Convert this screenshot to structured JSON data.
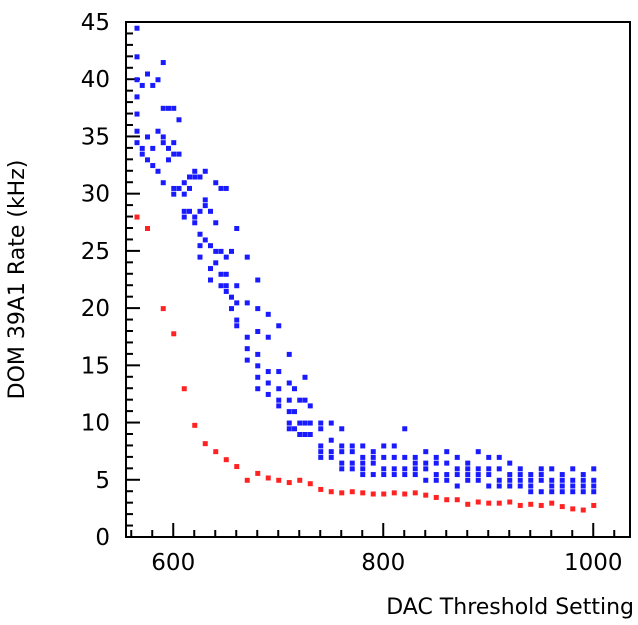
{
  "chart_data": {
    "type": "scatter",
    "title": "",
    "xlabel": "DAC Threshold Setting",
    "ylabel": "DOM 39A1 Rate (kHz)",
    "xlim": [
      555,
      1035
    ],
    "ylim": [
      0,
      45
    ],
    "xticks": [
      600,
      800,
      1000
    ],
    "yticks": [
      0,
      5,
      10,
      15,
      20,
      25,
      30,
      35,
      40,
      45
    ],
    "grid": false,
    "legend": "none",
    "series": [
      {
        "color": "#1a1aff",
        "points": [
          [
            565,
            44.5
          ],
          [
            565,
            42.0
          ],
          [
            565,
            40.0
          ],
          [
            565,
            38.5
          ],
          [
            565,
            37.0
          ],
          [
            565,
            35.5
          ],
          [
            565,
            34.5
          ],
          [
            570,
            39.5
          ],
          [
            570,
            34.0
          ],
          [
            570,
            33.5
          ],
          [
            575,
            40.5
          ],
          [
            575,
            35.0
          ],
          [
            575,
            33.0
          ],
          [
            580,
            39.5
          ],
          [
            580,
            34.0
          ],
          [
            580,
            32.5
          ],
          [
            585,
            40.0
          ],
          [
            585,
            35.5
          ],
          [
            585,
            32.0
          ],
          [
            590,
            41.5
          ],
          [
            590,
            37.5
          ],
          [
            590,
            35.0
          ],
          [
            590,
            34.5
          ],
          [
            590,
            31.0
          ],
          [
            595,
            37.5
          ],
          [
            595,
            34.0
          ],
          [
            595,
            33.0
          ],
          [
            600,
            37.5
          ],
          [
            600,
            34.5
          ],
          [
            600,
            33.5
          ],
          [
            600,
            30.5
          ],
          [
            600,
            30.0
          ],
          [
            605,
            36.5
          ],
          [
            605,
            33.5
          ],
          [
            605,
            30.5
          ],
          [
            610,
            31.0
          ],
          [
            610,
            30.0
          ],
          [
            610,
            28.5
          ],
          [
            610,
            28.0
          ],
          [
            615,
            31.5
          ],
          [
            615,
            30.5
          ],
          [
            615,
            28.5
          ],
          [
            620,
            32.0
          ],
          [
            620,
            31.5
          ],
          [
            620,
            28.0
          ],
          [
            620,
            27.5
          ],
          [
            625,
            31.5
          ],
          [
            625,
            28.5
          ],
          [
            625,
            26.5
          ],
          [
            625,
            25.5
          ],
          [
            625,
            24.5
          ],
          [
            630,
            32.0
          ],
          [
            630,
            29.5
          ],
          [
            630,
            29.0
          ],
          [
            630,
            26.0
          ],
          [
            635,
            28.5
          ],
          [
            635,
            25.5
          ],
          [
            635,
            23.5
          ],
          [
            635,
            22.5
          ],
          [
            640,
            31.0
          ],
          [
            640,
            27.5
          ],
          [
            640,
            25.0
          ],
          [
            640,
            24.0
          ],
          [
            645,
            30.5
          ],
          [
            645,
            25.0
          ],
          [
            645,
            23.0
          ],
          [
            645,
            22.0
          ],
          [
            650,
            30.5
          ],
          [
            650,
            24.5
          ],
          [
            650,
            23.0
          ],
          [
            650,
            22.0
          ],
          [
            650,
            21.5
          ],
          [
            655,
            25.0
          ],
          [
            655,
            21.0
          ],
          [
            655,
            20.0
          ],
          [
            660,
            27.0
          ],
          [
            660,
            22.0
          ],
          [
            660,
            20.5
          ],
          [
            660,
            19.0
          ],
          [
            660,
            18.5
          ],
          [
            670,
            24.5
          ],
          [
            670,
            20.5
          ],
          [
            670,
            17.5
          ],
          [
            670,
            16.5
          ],
          [
            670,
            15.5
          ],
          [
            680,
            22.5
          ],
          [
            680,
            20.0
          ],
          [
            680,
            18.0
          ],
          [
            680,
            16.0
          ],
          [
            680,
            15.0
          ],
          [
            680,
            14.0
          ],
          [
            680,
            13.0
          ],
          [
            690,
            19.5
          ],
          [
            690,
            17.5
          ],
          [
            690,
            14.5
          ],
          [
            690,
            13.5
          ],
          [
            690,
            12.5
          ],
          [
            700,
            18.5
          ],
          [
            700,
            14.5
          ],
          [
            700,
            13.0
          ],
          [
            700,
            12.0
          ],
          [
            700,
            11.5
          ],
          [
            710,
            16.0
          ],
          [
            710,
            13.5
          ],
          [
            710,
            12.0
          ],
          [
            710,
            11.0
          ],
          [
            710,
            10.0
          ],
          [
            710,
            9.5
          ],
          [
            715,
            13.0
          ],
          [
            715,
            11.0
          ],
          [
            715,
            9.5
          ],
          [
            720,
            12.0
          ],
          [
            720,
            10.0
          ],
          [
            720,
            9.0
          ],
          [
            725,
            14.0
          ],
          [
            725,
            12.0
          ],
          [
            725,
            10.0
          ],
          [
            725,
            9.0
          ],
          [
            730,
            11.5
          ],
          [
            730,
            10.0
          ],
          [
            730,
            9.0
          ],
          [
            740,
            10.0
          ],
          [
            740,
            9.5
          ],
          [
            740,
            8.0
          ],
          [
            740,
            7.5
          ],
          [
            740,
            7.0
          ],
          [
            750,
            10.0
          ],
          [
            750,
            8.5
          ],
          [
            750,
            7.5
          ],
          [
            750,
            7.0
          ],
          [
            760,
            9.5
          ],
          [
            760,
            8.0
          ],
          [
            760,
            7.5
          ],
          [
            760,
            6.5
          ],
          [
            760,
            6.0
          ],
          [
            770,
            8.0
          ],
          [
            770,
            7.5
          ],
          [
            770,
            6.5
          ],
          [
            770,
            6.0
          ],
          [
            780,
            8.0
          ],
          [
            780,
            7.0
          ],
          [
            780,
            6.5
          ],
          [
            780,
            6.0
          ],
          [
            780,
            5.5
          ],
          [
            790,
            7.5
          ],
          [
            790,
            7.0
          ],
          [
            790,
            6.5
          ],
          [
            790,
            5.5
          ],
          [
            800,
            8.0
          ],
          [
            800,
            7.0
          ],
          [
            800,
            6.0
          ],
          [
            800,
            5.5
          ],
          [
            810,
            8.0
          ],
          [
            810,
            7.0
          ],
          [
            810,
            6.0
          ],
          [
            810,
            5.5
          ],
          [
            820,
            9.5
          ],
          [
            820,
            7.0
          ],
          [
            820,
            6.0
          ],
          [
            820,
            5.5
          ],
          [
            830,
            7.0
          ],
          [
            830,
            6.5
          ],
          [
            830,
            6.0
          ],
          [
            830,
            5.5
          ],
          [
            840,
            7.5
          ],
          [
            840,
            6.5
          ],
          [
            840,
            6.0
          ],
          [
            840,
            5.0
          ],
          [
            850,
            7.0
          ],
          [
            850,
            6.5
          ],
          [
            850,
            5.5
          ],
          [
            850,
            5.0
          ],
          [
            860,
            7.5
          ],
          [
            860,
            6.5
          ],
          [
            860,
            5.5
          ],
          [
            860,
            5.0
          ],
          [
            870,
            7.0
          ],
          [
            870,
            6.0
          ],
          [
            870,
            5.5
          ],
          [
            870,
            4.5
          ],
          [
            880,
            6.5
          ],
          [
            880,
            6.0
          ],
          [
            880,
            5.5
          ],
          [
            880,
            5.0
          ],
          [
            890,
            7.5
          ],
          [
            890,
            6.0
          ],
          [
            890,
            5.5
          ],
          [
            890,
            5.0
          ],
          [
            900,
            7.0
          ],
          [
            900,
            6.0
          ],
          [
            900,
            5.5
          ],
          [
            900,
            4.5
          ],
          [
            910,
            7.0
          ],
          [
            910,
            6.0
          ],
          [
            910,
            5.0
          ],
          [
            910,
            4.5
          ],
          [
            920,
            6.5
          ],
          [
            920,
            5.5
          ],
          [
            920,
            5.0
          ],
          [
            920,
            4.5
          ],
          [
            930,
            6.0
          ],
          [
            930,
            5.5
          ],
          [
            930,
            5.0
          ],
          [
            930,
            4.5
          ],
          [
            940,
            5.5
          ],
          [
            940,
            5.0
          ],
          [
            940,
            4.5
          ],
          [
            940,
            4.0
          ],
          [
            950,
            6.0
          ],
          [
            950,
            5.5
          ],
          [
            950,
            5.0
          ],
          [
            950,
            4.0
          ],
          [
            960,
            6.0
          ],
          [
            960,
            5.0
          ],
          [
            960,
            4.5
          ],
          [
            960,
            4.0
          ],
          [
            970,
            5.5
          ],
          [
            970,
            5.0
          ],
          [
            970,
            4.5
          ],
          [
            970,
            4.0
          ],
          [
            980,
            6.0
          ],
          [
            980,
            5.0
          ],
          [
            980,
            4.5
          ],
          [
            980,
            4.0
          ],
          [
            990,
            5.5
          ],
          [
            990,
            5.0
          ],
          [
            990,
            4.5
          ],
          [
            990,
            4.0
          ],
          [
            1000,
            6.0
          ],
          [
            1000,
            5.0
          ],
          [
            1000,
            4.5
          ],
          [
            1000,
            4.0
          ]
        ]
      },
      {
        "color": "#ff2222",
        "points": [
          [
            565,
            28.0
          ],
          [
            575,
            27.0
          ],
          [
            590,
            20.0
          ],
          [
            600,
            17.8
          ],
          [
            610,
            13.0
          ],
          [
            620,
            9.8
          ],
          [
            630,
            8.2
          ],
          [
            640,
            7.5
          ],
          [
            650,
            6.8
          ],
          [
            660,
            6.2
          ],
          [
            670,
            5.0
          ],
          [
            680,
            5.6
          ],
          [
            690,
            5.2
          ],
          [
            700,
            5.0
          ],
          [
            710,
            4.8
          ],
          [
            720,
            5.0
          ],
          [
            730,
            4.7
          ],
          [
            740,
            4.2
          ],
          [
            750,
            4.0
          ],
          [
            760,
            3.9
          ],
          [
            770,
            4.0
          ],
          [
            780,
            3.9
          ],
          [
            790,
            3.8
          ],
          [
            800,
            3.8
          ],
          [
            810,
            3.9
          ],
          [
            820,
            3.8
          ],
          [
            830,
            3.9
          ],
          [
            840,
            3.7
          ],
          [
            850,
            3.5
          ],
          [
            860,
            3.3
          ],
          [
            870,
            3.3
          ],
          [
            880,
            2.9
          ],
          [
            890,
            3.1
          ],
          [
            900,
            3.0
          ],
          [
            910,
            3.0
          ],
          [
            920,
            3.1
          ],
          [
            930,
            2.8
          ],
          [
            940,
            2.9
          ],
          [
            950,
            2.8
          ],
          [
            960,
            3.0
          ],
          [
            970,
            2.7
          ],
          [
            980,
            2.5
          ],
          [
            990,
            2.4
          ],
          [
            1000,
            2.8
          ]
        ]
      }
    ]
  }
}
